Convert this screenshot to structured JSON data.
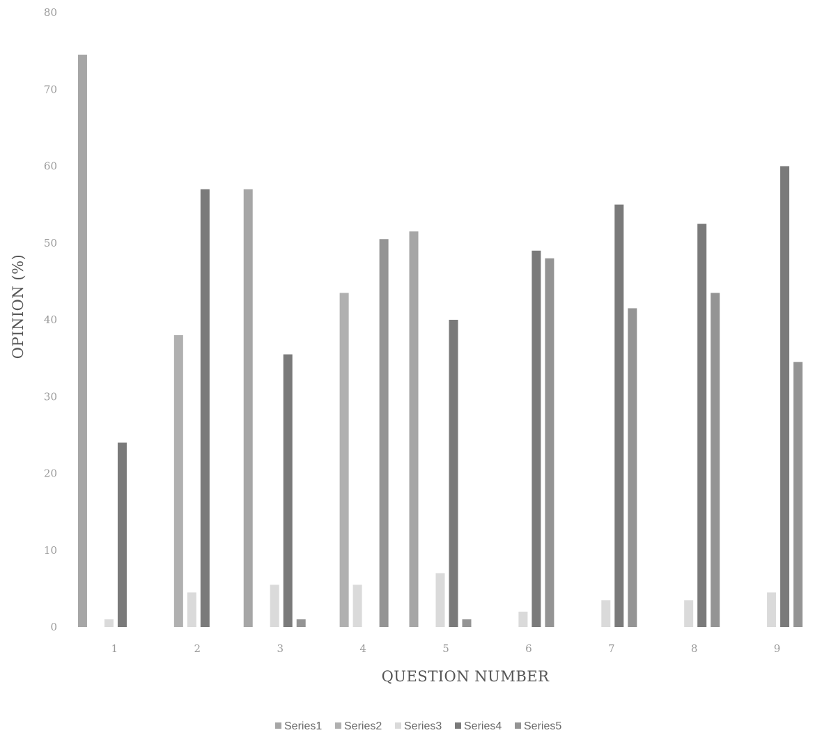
{
  "chart_data": {
    "type": "bar",
    "title": "",
    "xlabel": "QUESTION NUMBER",
    "ylabel": "OPINION (%)",
    "categories": [
      "1",
      "2",
      "3",
      "4",
      "5",
      "6",
      "7",
      "8",
      "9"
    ],
    "ylim": [
      0,
      80
    ],
    "yticks": [
      "0",
      "10",
      "20",
      "30",
      "40",
      "50",
      "60",
      "70",
      "80"
    ],
    "grid": false,
    "legend_position": "bottom",
    "series": [
      {
        "name": "Series1",
        "color": "#a6a6a6",
        "values": [
          74.5,
          0,
          57,
          0,
          51.5,
          0,
          0,
          0,
          0
        ]
      },
      {
        "name": "Series2",
        "color": "#b0b0b0",
        "values": [
          0,
          38,
          0,
          43.5,
          0,
          0,
          0,
          0,
          0
        ]
      },
      {
        "name": "Series3",
        "color": "#dadada",
        "values": [
          1,
          4.5,
          5.5,
          5.5,
          7,
          2,
          3.5,
          3.5,
          4.5
        ]
      },
      {
        "name": "Series4",
        "color": "#7a7a7a",
        "values": [
          24,
          57,
          35.5,
          0,
          40,
          49,
          55,
          52.5,
          60
        ]
      },
      {
        "name": "Series5",
        "color": "#949494",
        "values": [
          0,
          0,
          1,
          50.5,
          1,
          48,
          41.5,
          43.5,
          34.5
        ]
      }
    ]
  }
}
